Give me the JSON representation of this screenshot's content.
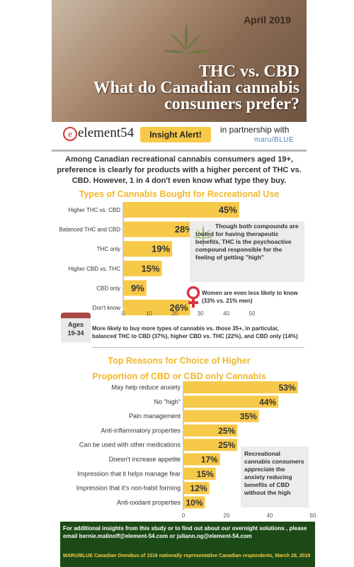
{
  "header": {
    "date": "April 2019",
    "title_line1": "THC vs. CBD",
    "title_line2": "What do Canadian cannabis",
    "title_line3": "consumers prefer?"
  },
  "brand": {
    "logo_mark": "e",
    "logo_text": "element54",
    "badge": "Insight Alert!",
    "partner_text": "in partnership with",
    "partner_name": "maru/BLUE"
  },
  "intro": "Among Canadian recreational cannabis consumers aged 19+, preference is clearly for products with a higher percent of THC vs. CBD. However, 1 in 4 don't even know what type they buy.",
  "notes": {
    "therapeutic": "Though both compounds are touted for having therapeutic benefits, THC is the psychoactive compound responsible for the feeling of getting \"high\"",
    "women": "Women are even less likely to know (33% vs. 21% men)",
    "ages_badge_line1": "Ages",
    "ages_badge_line2": "19-34",
    "ages": "More likely to buy more types of cannabis vs. those 35+, in particular, balanced THC to CBD (37%), higher CBD vs. THC (22%), and CBD only (14%)",
    "anxiety": "Recreational cannabis consumers appreciate the anxiety reducing benefits of CBD without the high"
  },
  "footer": {
    "text": "For additional insights from this study or to find out about our overnight solutions , please email bernie.malinoff@element-54.com or juliann.ng@element-54.com",
    "source": "MARU/BLUE Canadian Omnibus of 1516 nationally representative Canadian respondents, March 28, 2019"
  },
  "colors": {
    "bar": "#f7c948",
    "heading": "#f0b729",
    "footer": "#1c4a16",
    "badge": "#f7c948"
  },
  "chart_data": [
    {
      "type": "bar",
      "orientation": "horizontal",
      "title": "Types of Cannabis Bought for Recreational Use",
      "categories": [
        "Higher THC vs. CBD",
        "Balanced THC and CBD",
        "THC only",
        "Higher CBD vs. THC",
        "CBD only",
        "Don't know"
      ],
      "values": [
        45,
        28,
        19,
        15,
        9,
        26
      ],
      "value_labels": [
        "45%",
        "28%",
        "19%",
        "15%",
        "9%",
        "26%"
      ],
      "xlim": [
        0,
        50
      ],
      "ticks": [
        0,
        10,
        20,
        30,
        40,
        50
      ],
      "grid": false
    },
    {
      "type": "bar",
      "orientation": "horizontal",
      "title_line1": "Top Reasons for Choice of Higher",
      "title_line2": "Proportion of CBD or CBD only Cannabis",
      "categories": [
        "May help reduce anxiety",
        "No \"high\"",
        "Pain management",
        "Anti-inflammatory properties",
        "Can be used with other medications",
        "Doesn't increase appetite",
        "Impression that it helps manage fear",
        "Impression that it's non-habit forming",
        "Anti-oxidant properties"
      ],
      "values": [
        53,
        44,
        35,
        25,
        25,
        17,
        15,
        12,
        10
      ],
      "value_labels": [
        "53%",
        "44%",
        "35%",
        "25%",
        "25%",
        "17%",
        "15%",
        "12%",
        "10%"
      ],
      "xlim": [
        0,
        60
      ],
      "ticks": [
        0,
        20,
        40,
        60
      ],
      "grid": false
    }
  ]
}
